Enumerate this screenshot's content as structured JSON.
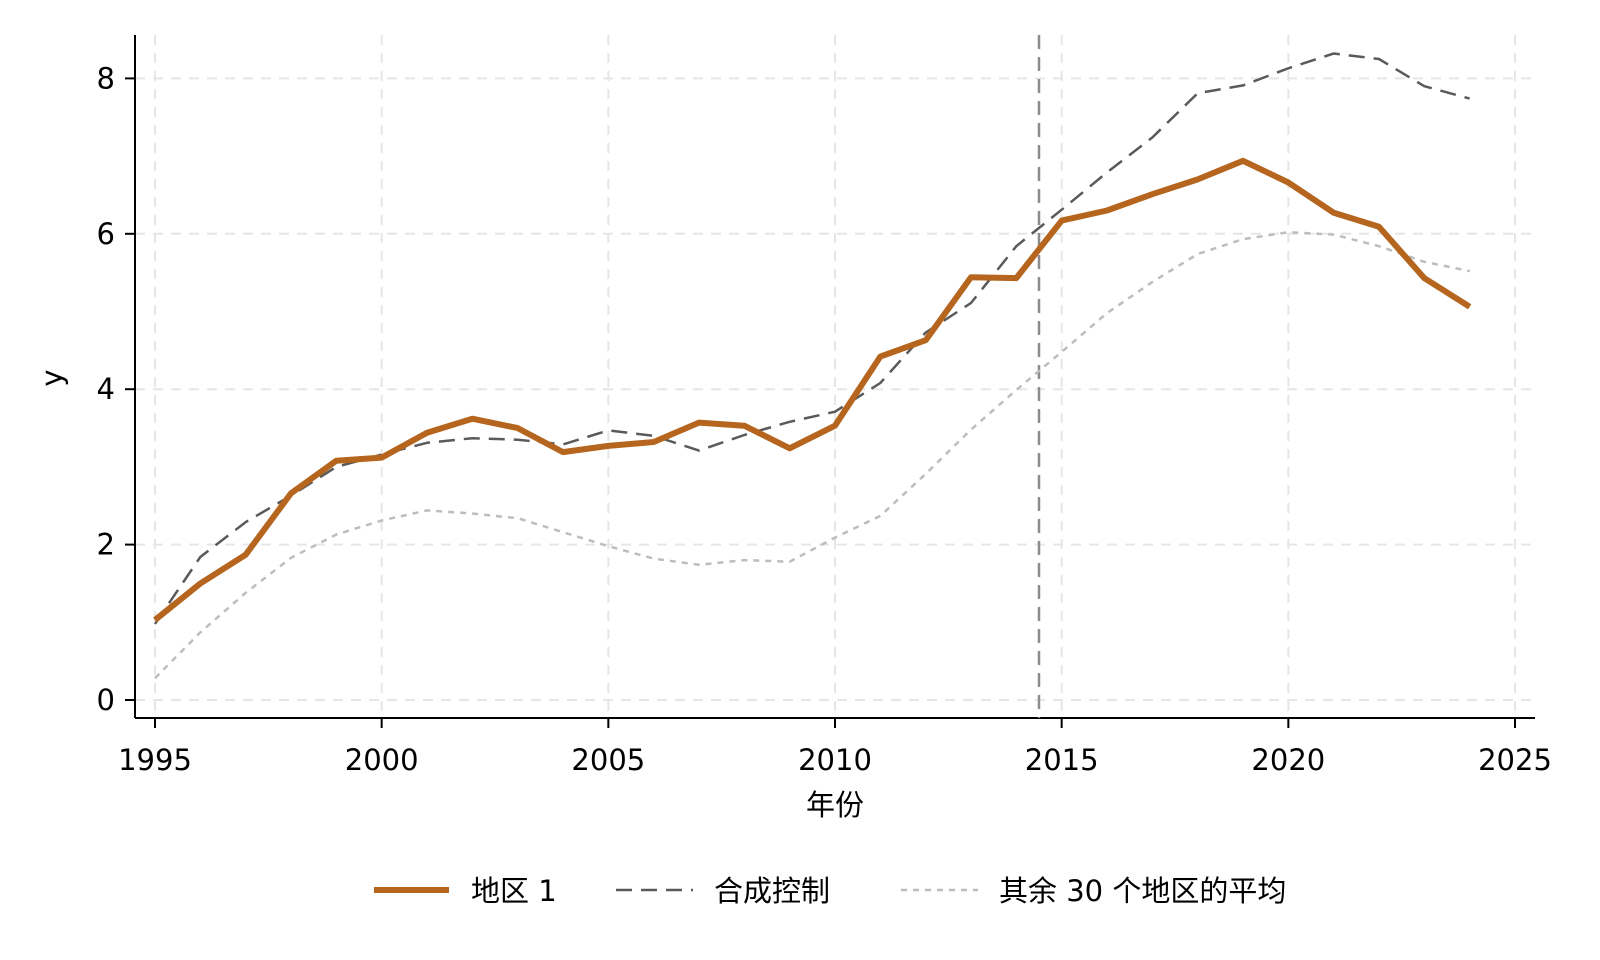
{
  "chart_data": {
    "type": "line",
    "xlabel": "年份",
    "ylabel": "y",
    "xlim": [
      1995,
      2025
    ],
    "ylim": [
      0,
      8.5
    ],
    "xticks": [
      1995,
      2000,
      2005,
      2010,
      2015,
      2020,
      2025
    ],
    "yticks": [
      0,
      2,
      4,
      6,
      8
    ],
    "grid": true,
    "legend_position": "bottom",
    "treatment_line_x": 2014.5,
    "x": [
      1995,
      1996,
      1997,
      1998,
      1999,
      2000,
      2001,
      2002,
      2003,
      2004,
      2005,
      2006,
      2007,
      2008,
      2009,
      2010,
      2011,
      2012,
      2013,
      2014,
      2015,
      2016,
      2017,
      2018,
      2019,
      2020,
      2021,
      2022,
      2023,
      2024
    ],
    "series": [
      {
        "name": "地区 1",
        "color": "#b5651d",
        "style": "solid",
        "values": [
          1.03,
          1.5,
          1.87,
          2.66,
          3.08,
          3.12,
          3.44,
          3.62,
          3.5,
          3.19,
          3.27,
          3.32,
          3.57,
          3.53,
          3.24,
          3.53,
          4.42,
          4.63,
          5.44,
          5.43,
          6.17,
          6.3,
          6.51,
          6.7,
          6.94,
          6.66,
          6.27,
          6.09,
          5.43,
          5.06
        ]
      },
      {
        "name": "合成控制",
        "color": "#5a5a5a",
        "style": "dashed",
        "values": [
          0.98,
          1.84,
          2.29,
          2.63,
          3.0,
          3.16,
          3.31,
          3.37,
          3.35,
          3.29,
          3.47,
          3.4,
          3.21,
          3.41,
          3.58,
          3.71,
          4.08,
          4.73,
          5.11,
          5.84,
          6.31,
          6.79,
          7.24,
          7.81,
          7.91,
          8.13,
          8.32,
          8.25,
          7.9,
          7.74
        ]
      },
      {
        "name": "其余 30 个地区的平均",
        "color": "#bdbdbd",
        "style": "dotted",
        "values": [
          0.28,
          0.87,
          1.38,
          1.83,
          2.13,
          2.31,
          2.44,
          2.4,
          2.34,
          2.16,
          1.98,
          1.82,
          1.74,
          1.8,
          1.78,
          2.09,
          2.37,
          2.91,
          3.48,
          3.99,
          4.48,
          4.98,
          5.38,
          5.74,
          5.93,
          6.02,
          5.99,
          5.84,
          5.64,
          5.52
        ]
      }
    ]
  }
}
